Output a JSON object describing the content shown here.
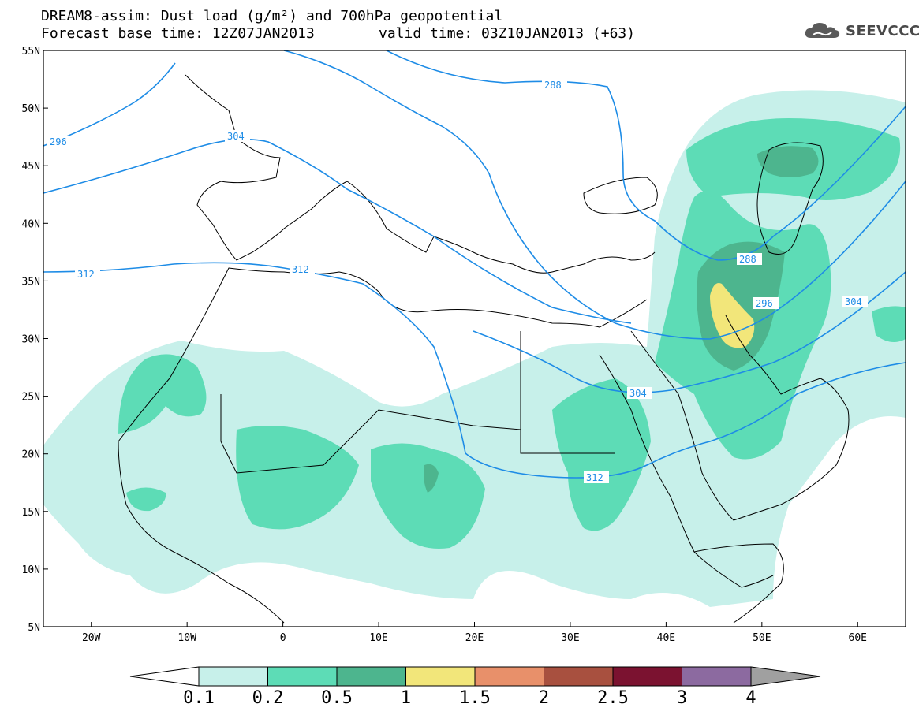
{
  "header": {
    "title_line1": "DREAM8-assim: Dust load (g/m²) and 700hPa geopotential",
    "title_line2": "Forecast base time: 12Z07JAN2013",
    "valid_time": "valid time: 03Z10JAN2013 (+63)",
    "logo_text": "SEEVCCC",
    "logo_icon": "cloud-icon"
  },
  "map": {
    "lat_labels": [
      "55N",
      "50N",
      "45N",
      "40N",
      "35N",
      "30N",
      "25N",
      "20N",
      "15N",
      "10N",
      "5N"
    ],
    "lon_labels": [
      "20W",
      "10W",
      "0",
      "10E",
      "20E",
      "30E",
      "40E",
      "50E",
      "60E"
    ],
    "lon_range": [
      -25,
      65
    ],
    "lat_range": [
      5,
      55
    ],
    "contour_color": "#1e8ce6",
    "contour_labels": [
      "296",
      "304",
      "288",
      "312",
      "312",
      "288",
      "296",
      "304",
      "304",
      "312"
    ]
  },
  "colorbar": {
    "ticks": [
      "0.1",
      "0.2",
      "0.5",
      "1",
      "1.5",
      "2",
      "2.5",
      "3",
      "4"
    ],
    "colors": [
      "#c7f0ea",
      "#5ddcb6",
      "#4db58e",
      "#f2e67a",
      "#e8906a",
      "#a8503f",
      "#7b1230",
      "#8c6aa0"
    ],
    "low_color": "#ffffff",
    "high_color": "#a0a0a0"
  }
}
